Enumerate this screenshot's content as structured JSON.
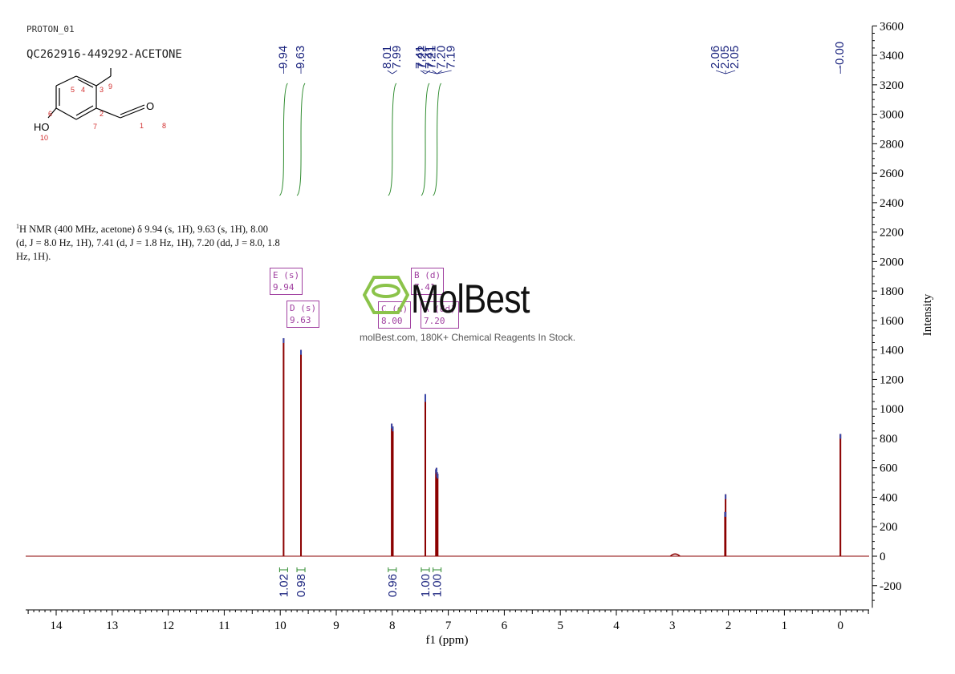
{
  "header": {
    "experiment": "PROTON_01",
    "sample": "QC262916-449292-ACETONE"
  },
  "molecule": {
    "atom_labels": [
      "1",
      "2",
      "3",
      "4",
      "5",
      "6",
      "7",
      "8",
      "9",
      "10"
    ],
    "heteroatoms": [
      "I",
      "O",
      "HO"
    ]
  },
  "nmr_description": {
    "sup": "1",
    "text": "H NMR (400 MHz, acetone) δ 9.94 (s, 1H), 9.63 (s, 1H), 8.00 (d, J = 8.0 Hz, 1H), 7.41 (d, J = 1.8 Hz, 1H), 7.20 (dd, J = 8.0, 1.8 Hz, 1H)."
  },
  "watermark": {
    "logo": "MolBest",
    "text": "molBest.com, 180K+ Chemical Reagents In Stock.",
    "color": "#8bc34a"
  },
  "multiplet_boxes": [
    {
      "label": "E (s)",
      "shift": "9.94"
    },
    {
      "label": "D (s)",
      "shift": "9.63"
    },
    {
      "label": "C (d)",
      "shift": "8.00"
    },
    {
      "label": "B (d)",
      "shift": "7.41"
    },
    {
      "label": "A (dd)",
      "shift": "7.20"
    }
  ],
  "chart_data": {
    "type": "line",
    "xlabel": "f1 (ppm)",
    "ylabel": "Intensity",
    "xlim": [
      14.5,
      -0.5
    ],
    "ylim": [
      -300,
      3600
    ],
    "x_ticks": [
      14,
      13,
      12,
      11,
      10,
      9,
      8,
      7,
      6,
      5,
      4,
      3,
      2,
      1,
      0
    ],
    "y_ticks": [
      3600,
      3400,
      3200,
      3000,
      2800,
      2600,
      2400,
      2200,
      2000,
      1800,
      1600,
      1400,
      1200,
      1000,
      800,
      600,
      400,
      200,
      0,
      -200
    ],
    "peaks": [
      {
        "ppm": 9.94,
        "intensity": 1480
      },
      {
        "ppm": 9.63,
        "intensity": 1400
      },
      {
        "ppm": 8.01,
        "intensity": 900
      },
      {
        "ppm": 7.99,
        "intensity": 880
      },
      {
        "ppm": 7.41,
        "intensity": 1100
      },
      {
        "ppm": 7.41,
        "intensity": 1080
      },
      {
        "ppm": 7.22,
        "intensity": 590
      },
      {
        "ppm": 7.21,
        "intensity": 600
      },
      {
        "ppm": 7.2,
        "intensity": 570
      },
      {
        "ppm": 7.19,
        "intensity": 560
      },
      {
        "ppm": 2.06,
        "intensity": 300
      },
      {
        "ppm": 2.05,
        "intensity": 420
      },
      {
        "ppm": 2.05,
        "intensity": 300
      },
      {
        "ppm": 2.95,
        "intensity": 30
      },
      {
        "ppm": 0.0,
        "intensity": 830
      }
    ],
    "peak_labels_groups": [
      {
        "labels": [
          "9.94"
        ],
        "anchor_ppm": 9.94
      },
      {
        "labels": [
          "9.63"
        ],
        "anchor_ppm": 9.63
      },
      {
        "labels": [
          "8.01",
          "7.99"
        ],
        "anchor_ppm": 8.0
      },
      {
        "labels": [
          "7.41",
          "7.41"
        ],
        "anchor_ppm": 7.41
      },
      {
        "labels": [
          "7.22",
          "7.21",
          "7.20",
          "7.19"
        ],
        "anchor_ppm": 7.2
      },
      {
        "labels": [
          "2.06",
          "2.05",
          "2.05"
        ],
        "anchor_ppm": 2.05
      },
      {
        "labels": [
          "-0.00"
        ],
        "anchor_ppm": 0.0
      }
    ],
    "integrals": [
      {
        "ppm": 9.94,
        "value": "1.02"
      },
      {
        "ppm": 9.63,
        "value": "0.98"
      },
      {
        "ppm": 8.0,
        "value": "0.96"
      },
      {
        "ppm": 7.41,
        "value": "1.00"
      },
      {
        "ppm": 7.2,
        "value": "1.00"
      }
    ],
    "colors": {
      "spectrum": "#8b0000",
      "labels": "#1a237e",
      "integral": "#2e8b2e",
      "axis": "#000000"
    }
  }
}
